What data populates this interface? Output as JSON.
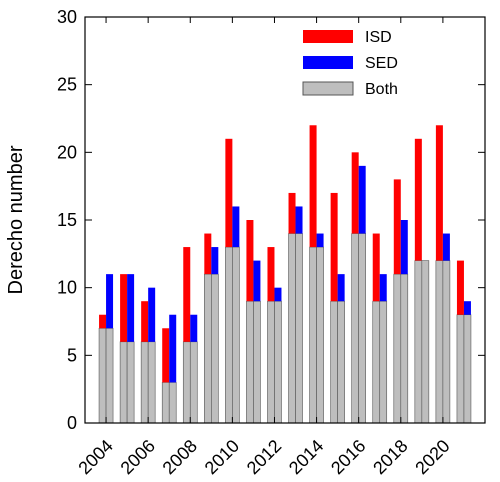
{
  "chart_data": {
    "type": "stacked-pair-bar",
    "y_label": "Derecho number",
    "categories": [
      "2004",
      null,
      "2006",
      null,
      "2008",
      null,
      "2010",
      null,
      "2012",
      null,
      "2014",
      null,
      "2016",
      null,
      "2018",
      null,
      "2020",
      null
    ],
    "series": [
      {
        "name": "Both",
        "color": "#bebebe",
        "values": [
          7,
          6,
          6,
          3,
          6,
          11,
          13,
          9,
          9,
          14,
          13,
          9,
          14,
          9,
          11,
          12,
          12,
          8
        ]
      },
      {
        "name": "ISD",
        "color": "#ff0000",
        "values": [
          1,
          5,
          3,
          4,
          7,
          3,
          8,
          6,
          4,
          3,
          9,
          8,
          6,
          5,
          7,
          9,
          10,
          4
        ]
      },
      {
        "name": "SED",
        "color": "#0000ff",
        "values": [
          4,
          5,
          4,
          5,
          2,
          2,
          3,
          3,
          1,
          2,
          1,
          2,
          5,
          2,
          4,
          0,
          2,
          1
        ]
      }
    ],
    "legend_order": [
      "ISD",
      "SED",
      "Both"
    ],
    "ylim": [
      0,
      30
    ],
    "yticks": [
      0,
      5,
      10,
      15,
      20,
      25,
      30
    ]
  }
}
